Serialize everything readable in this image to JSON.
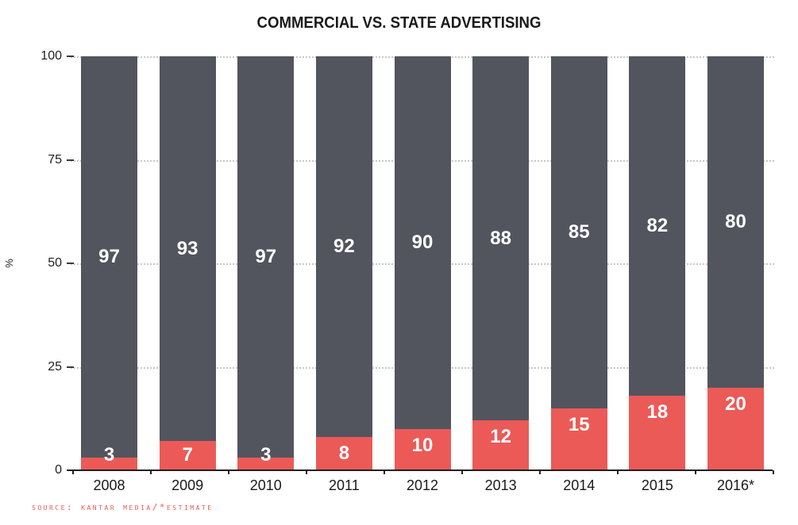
{
  "title": "COMMERCIAL VS. STATE ADVERTISING",
  "source_note": "Source: Kantar Media/*Estimate",
  "colors": {
    "commercial_bar": "#52555e",
    "state_bar": "#eb5a57",
    "source_text": "#eb5a57",
    "gridline": "#c7c7c7",
    "axis": "#231f20",
    "bar_value_text": "#ffffff",
    "title_text": "#1a1a1a"
  },
  "chart_data": {
    "type": "bar",
    "stacked": true,
    "title": "COMMERCIAL VS. STATE ADVERTISING",
    "categories": [
      "2008",
      "2009",
      "2010",
      "2011",
      "2012",
      "2013",
      "2014",
      "2015",
      "2016*"
    ],
    "series": [
      {
        "name": "State",
        "color": "#eb5a57",
        "position": "bottom",
        "values": [
          3,
          7,
          3,
          8,
          10,
          12,
          15,
          18,
          20
        ]
      },
      {
        "name": "Commercial",
        "color": "#52555e",
        "position": "top",
        "values": [
          97,
          93,
          97,
          92,
          90,
          88,
          85,
          82,
          80
        ]
      }
    ],
    "xlabel": "",
    "ylabel": "%",
    "yticks": [
      0,
      25,
      50,
      75,
      100
    ],
    "ylim": [
      0,
      100
    ],
    "grid": "horizontal-dotted",
    "legend": "none",
    "bar_value_labels": "inside-white",
    "source_note": "Source: Kantar Media/*Estimate"
  }
}
